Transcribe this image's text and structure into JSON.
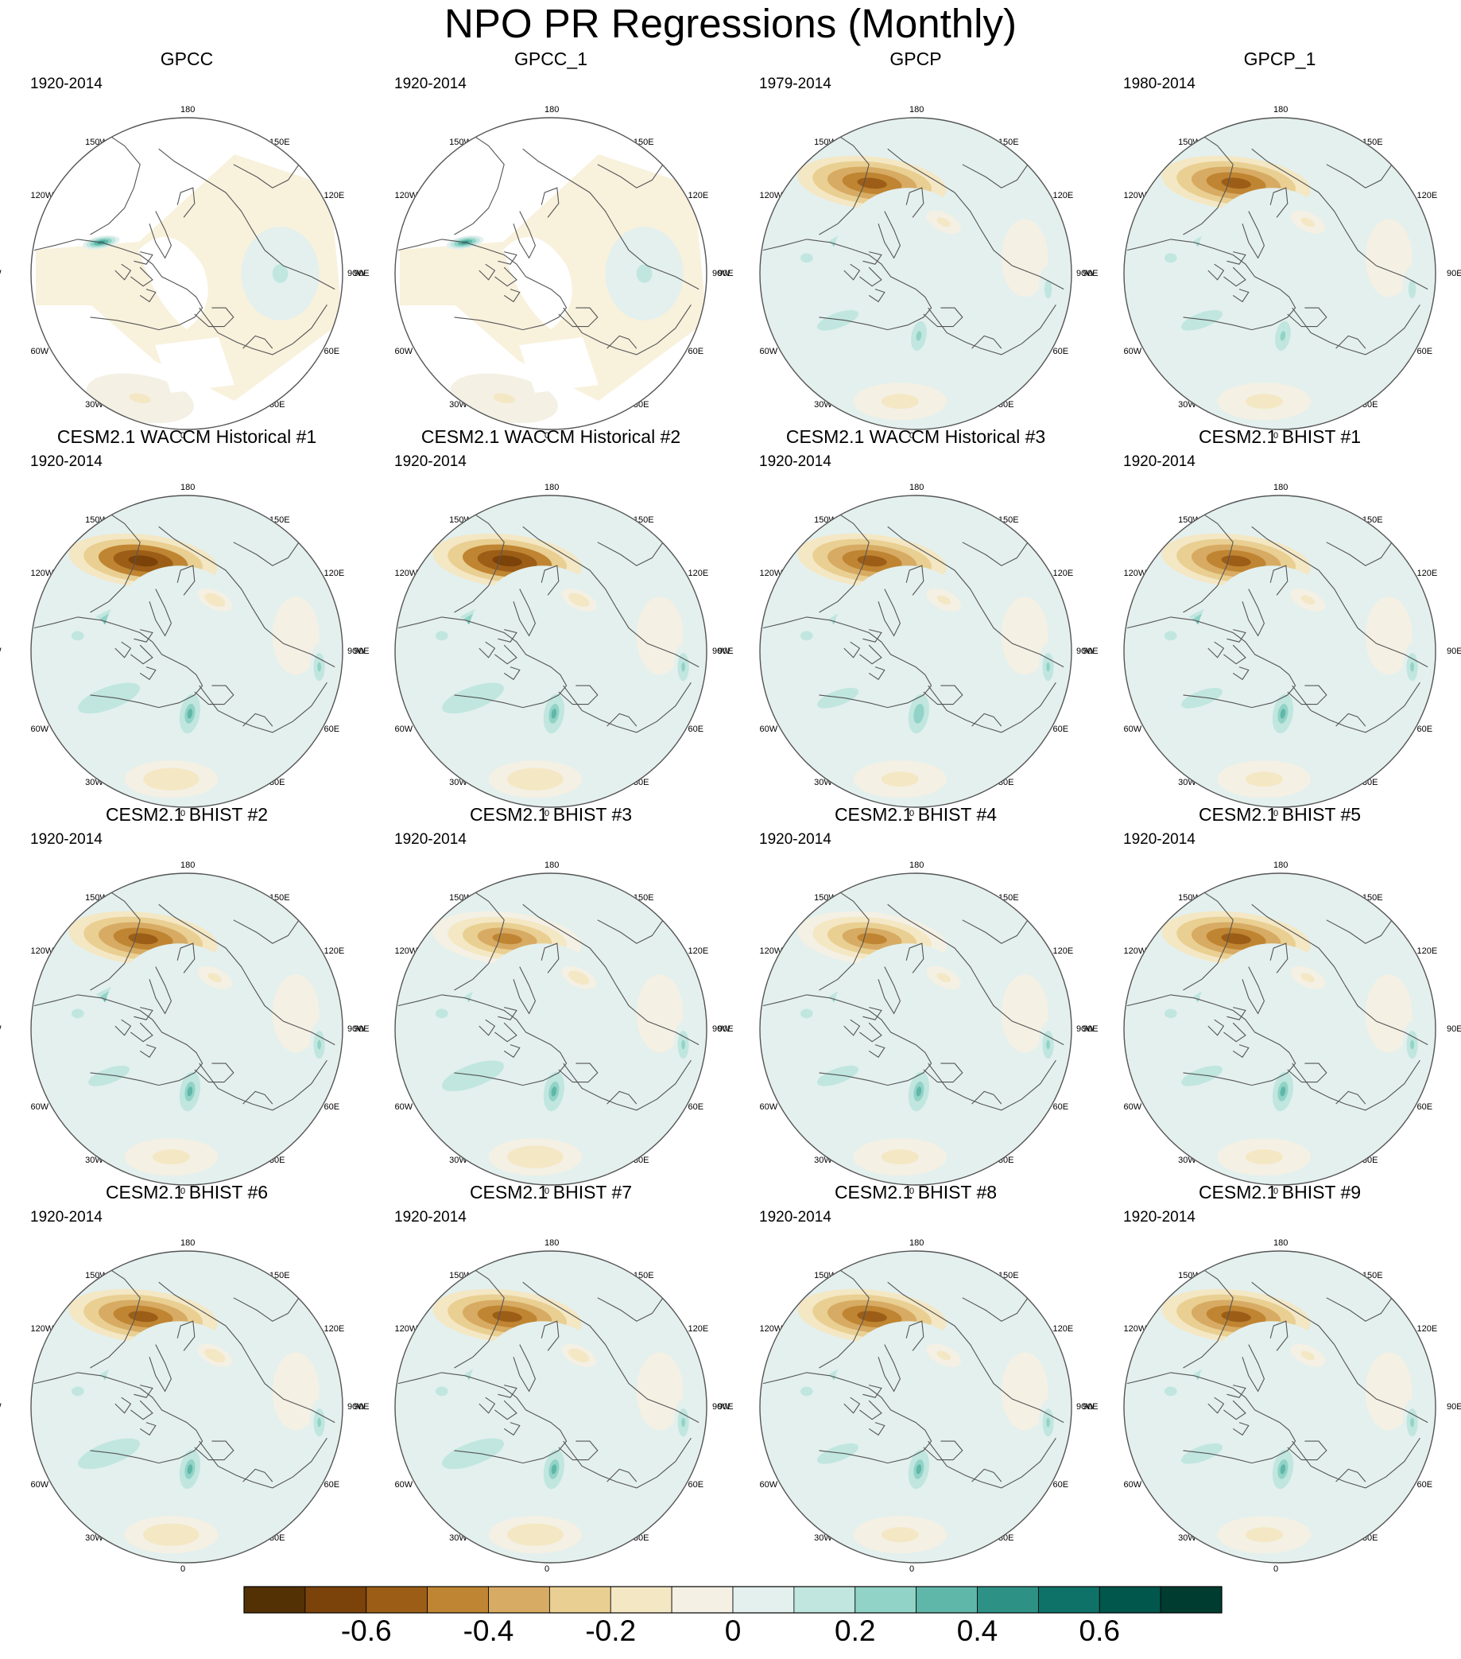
{
  "title": "NPO PR Regressions (Monthly)",
  "lon_labels": [
    "180",
    "150E",
    "120E",
    "90E",
    "60E",
    "30E",
    "0",
    "30W",
    "60W",
    "90W",
    "120W",
    "150W"
  ],
  "panels": [
    {
      "title": "GPCC",
      "period": "1920-2014",
      "mask": true,
      "pac": 0.0,
      "ae": 0.0,
      "ale": 0.1,
      "alw": 0.05
    },
    {
      "title": "GPCC_1",
      "period": "1920-2014",
      "mask": true,
      "pac": 0.0,
      "ae": 0.0,
      "ale": 0.1,
      "alw": 0.05
    },
    {
      "title": "GPCP",
      "period": "1979-2014",
      "mask": false,
      "pac": 0.6,
      "ae": 0.4,
      "ale": 0.2,
      "alw": 0.15
    },
    {
      "title": "GPCP_1",
      "period": "1980-2014",
      "mask": false,
      "pac": 0.6,
      "ae": 0.45,
      "ale": 0.2,
      "alw": 0.15
    },
    {
      "title": "CESM2.1 WACCM Historical #1",
      "period": "1920-2014",
      "mask": false,
      "pac": 0.7,
      "ae": 0.5,
      "ale": 0.3,
      "alw": 0.2
    },
    {
      "title": "CESM2.1 WACCM Historical #2",
      "period": "1920-2014",
      "mask": false,
      "pac": 0.7,
      "ae": 0.5,
      "ale": 0.3,
      "alw": 0.2
    },
    {
      "title": "CESM2.1 WACCM Historical #3",
      "period": "1920-2014",
      "mask": false,
      "pac": 0.6,
      "ae": 0.45,
      "ale": 0.25,
      "alw": 0.15
    },
    {
      "title": "CESM2.1 BHIST #1",
      "period": "1920-2014",
      "mask": false,
      "pac": 0.6,
      "ae": 0.5,
      "ale": 0.3,
      "alw": 0.15
    },
    {
      "title": "CESM2.1 BHIST #2",
      "period": "1920-2014",
      "mask": false,
      "pac": 0.55,
      "ae": 0.5,
      "ale": 0.3,
      "alw": 0.15
    },
    {
      "title": "CESM2.1 BHIST #3",
      "period": "1920-2014",
      "mask": false,
      "pac": 0.5,
      "ae": 0.45,
      "ale": 0.3,
      "alw": 0.2
    },
    {
      "title": "CESM2.1 BHIST #4",
      "period": "1920-2014",
      "mask": false,
      "pac": 0.5,
      "ae": 0.45,
      "ale": 0.3,
      "alw": 0.15
    },
    {
      "title": "CESM2.1 BHIST #5",
      "period": "1920-2014",
      "mask": false,
      "pac": 0.6,
      "ae": 0.45,
      "ale": 0.3,
      "alw": 0.15
    },
    {
      "title": "CESM2.1 BHIST #6",
      "period": "1920-2014",
      "mask": false,
      "pac": 0.6,
      "ae": 0.45,
      "ale": 0.3,
      "alw": 0.2
    },
    {
      "title": "CESM2.1 BHIST #7",
      "period": "1920-2014",
      "mask": false,
      "pac": 0.55,
      "ae": 0.4,
      "ale": 0.3,
      "alw": 0.2
    },
    {
      "title": "CESM2.1 BHIST #8",
      "period": "1920-2014",
      "mask": false,
      "pac": 0.55,
      "ae": 0.4,
      "ale": 0.3,
      "alw": 0.15
    },
    {
      "title": "CESM2.1 BHIST #9",
      "period": "1920-2014",
      "mask": false,
      "pac": 0.55,
      "ae": 0.45,
      "ale": 0.3,
      "alw": 0.15
    }
  ],
  "chart_data": {
    "type": "heatmap",
    "title": "NPO PR Regressions (Monthly)",
    "projection": "north polar stereographic",
    "colorbar": {
      "levels": [
        -0.7,
        -0.6,
        -0.5,
        -0.4,
        -0.3,
        -0.2,
        -0.1,
        0,
        0.1,
        0.2,
        0.3,
        0.4,
        0.5,
        0.6,
        0.7
      ],
      "colors": [
        "#543005",
        "#7b4209",
        "#9c5e17",
        "#c08532",
        "#d7ab63",
        "#e9cf92",
        "#f4e7c4",
        "#f4f0e4",
        "#e3f0ee",
        "#c0e6df",
        "#91d3c6",
        "#5fb7a9",
        "#2d9186",
        "#0f7268",
        "#01574b",
        "#003c30"
      ],
      "tick_labels": [
        "-0.6",
        "-0.4",
        "-0.2",
        "0",
        "0.2",
        "0.4",
        "0.6"
      ],
      "tick_values": [
        -0.6,
        -0.4,
        -0.2,
        0,
        0.2,
        0.4,
        0.6
      ]
    }
  }
}
